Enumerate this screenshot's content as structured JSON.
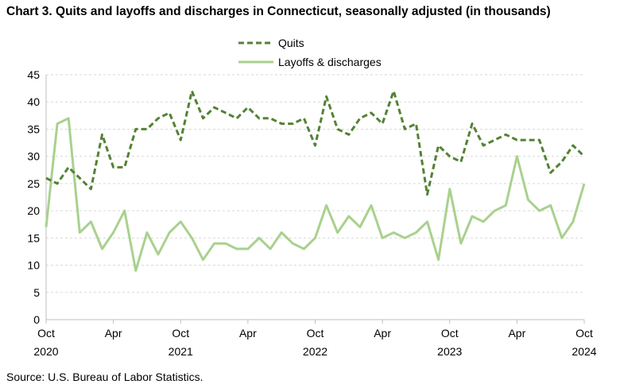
{
  "chart_data": {
    "type": "line",
    "title": "Chart 3. Quits and layoffs and discharges in Connecticut, seasonally adjusted (in thousands)",
    "source": "Source: U.S. Bureau of Labor Statistics.",
    "ylim": [
      0,
      45
    ],
    "yticks": [
      "0",
      "5",
      "10",
      "15",
      "20",
      "25",
      "30",
      "35",
      "40",
      "45"
    ],
    "ytick_values": [
      0,
      5,
      10,
      15,
      20,
      25,
      30,
      35,
      40,
      45
    ],
    "grid": true,
    "xtick_month_labels": [
      "Oct",
      "Apr",
      "Oct",
      "Apr",
      "Oct",
      "Apr",
      "Oct",
      "Apr",
      "Oct"
    ],
    "xtick_year_labels": [
      "2020",
      "",
      "2021",
      "",
      "2022",
      "",
      "2023",
      "",
      "2024"
    ],
    "xtick_indices": [
      0,
      6,
      12,
      18,
      24,
      30,
      36,
      42,
      48
    ],
    "num_points": 49,
    "series": [
      {
        "name": "Quits",
        "color": "#548235",
        "style": "dashed",
        "values": [
          26,
          25,
          28,
          26,
          24,
          34,
          28,
          28,
          35,
          35,
          37,
          38,
          33,
          42,
          37,
          39,
          38,
          37,
          39,
          37,
          37,
          36,
          36,
          37,
          32,
          41,
          35,
          34,
          37,
          38,
          36,
          42,
          35,
          36,
          23,
          32,
          30,
          29,
          36,
          32,
          33,
          34,
          33,
          33,
          33,
          27,
          29,
          32,
          30
        ]
      },
      {
        "name": "Layoffs & discharges",
        "color": "#A9D18E",
        "style": "solid",
        "values": [
          17,
          36,
          37,
          16,
          18,
          13,
          16,
          20,
          9,
          16,
          12,
          16,
          18,
          15,
          11,
          14,
          14,
          13,
          13,
          15,
          13,
          16,
          14,
          13,
          15,
          21,
          16,
          19,
          17,
          21,
          15,
          16,
          15,
          16,
          18,
          11,
          24,
          14,
          19,
          18,
          20,
          21,
          30,
          22,
          20,
          21,
          15,
          18,
          25
        ]
      }
    ]
  }
}
